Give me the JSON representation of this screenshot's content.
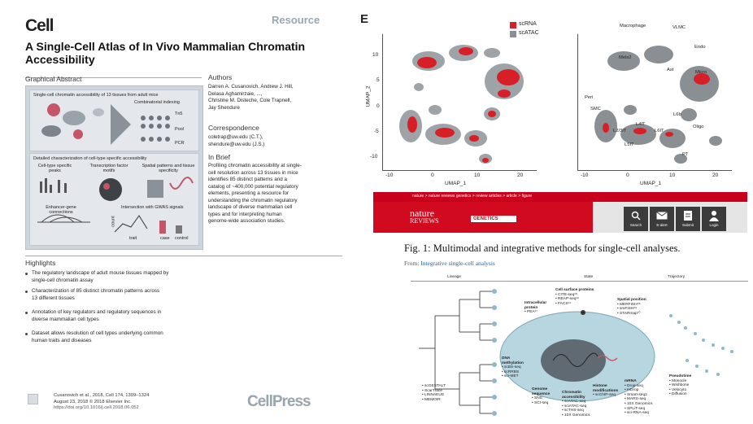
{
  "cell_article": {
    "logo": "Cell",
    "type_label": "Resource",
    "title_line1": "A Single-Cell Atlas of In Vivo Mammalian Chromatin",
    "title_line2": "Accessibility",
    "graphical_abstract_heading": "Graphical Abstract",
    "ga_top_title": "Single-cell chromatin accessibility of 13 tissues from adult mice",
    "ga_combinatorial": "Combinatorial indexing",
    "ga_tn5": "Tn5",
    "ga_pool": "Pool",
    "ga_pcr": "PCR",
    "ga_bottom_title": "Detailed characterization of cell-type specific accessibility",
    "ga_celltype": "Cell-type specific peaks",
    "ga_tf": "Transcription factor motifs",
    "ga_spatial": "Spatial patterns and tissue specificity",
    "ga_enhancer": "Enhancer-gene connections",
    "ga_gwas": "Intersection with GWAS signals",
    "ga_count": "count",
    "ga_trait": "trait",
    "ga_case": "case",
    "ga_control": "control",
    "authors_heading": "Authors",
    "authors": [
      "Darren A. Cusanovich, Andrew J. Hill,",
      "Delasa Aghamirzaie, ...,",
      "Christine M. Disteche, Cole Trapnell,",
      "Jay Shendure"
    ],
    "correspondence_heading": "Correspondence",
    "correspondence": [
      "coletrap@uw.edu (C.T.),",
      "shendure@uw.edu (J.S.)"
    ],
    "in_brief_heading": "In Brief",
    "in_brief": [
      "Profiling chromatin accessibility at single-",
      "cell resolution across 13 tissues in mice",
      "identifies 85 distinct patterns and a",
      "catalog of ~400,000 potential regulatory",
      "elements, presenting a resource for",
      "understanding the chromatin regulatory",
      "landscape of diverse mammalian cell",
      "types and for interpreting human",
      "genome-wide association studies."
    ],
    "highlights_heading": "Highlights",
    "highlights": [
      [
        "The regulatory landscape of adult mouse tissues mapped by",
        "single-cell chromatin assay"
      ],
      [
        "Characterization of 85 distinct chromatin patterns across",
        "13 different tissues"
      ],
      [
        "Annotation of key regulators and regulatory sequences in",
        "diverse mammalian cell types"
      ],
      [
        "Dataset allows resolution of cell types underlying common",
        "human traits and diseases"
      ]
    ],
    "footer": [
      "Cusanovich et al., 2018, Cell 174, 1309–1324",
      "August 23, 2018 © 2018 Elsevier Inc.",
      "https://doi.org/10.1016/j.cell.2018.06.052"
    ],
    "publisher_logo": "CellPress"
  },
  "umap_figure": {
    "panel_letter": "E",
    "legend": [
      "scRNA",
      "scATAC"
    ],
    "colors": {
      "scrna": "#d61f26",
      "scatac": "#8a8f94",
      "scatac_light": "#c2c6ca"
    },
    "x_ticks": [
      "-10",
      "0",
      "10",
      "20"
    ],
    "y_ticks": [
      "10",
      "5",
      "0",
      "-5",
      "-10"
    ],
    "x_label": "UMAP_1",
    "y_label": "UMAP_2",
    "cluster_labels": [
      "Macrophage",
      "VLMC",
      "Endo",
      "Micro",
      "Mels2",
      "Ast",
      "Peri",
      "SMC",
      "L2/3IT",
      "L4IT",
      "L5IT",
      "L6IT",
      "L6b",
      "PT",
      "Oligo"
    ]
  },
  "nature_page": {
    "breadcrumb": "nature > nature reviews genetics > review articles > article > figure",
    "brand_line1": "nature",
    "brand_line2": "REVIEWS",
    "brand_section": "GENETICS",
    "icons": [
      {
        "icon": "search-icon",
        "label": "Search"
      },
      {
        "icon": "mail-icon",
        "label": "E-alert"
      },
      {
        "icon": "submit-icon",
        "label": "Submit"
      },
      {
        "icon": "login-icon",
        "label": "Login"
      }
    ],
    "figure_caption": "Fig. 1: Multimodal and integrative methods for single-cell analyses.",
    "from_prefix": "From:",
    "from_link": "Integrative single-cell analysis",
    "diagram": {
      "col_lineage": "Lineage",
      "col_state": "State",
      "col_trajectory": "Trajectory",
      "surface": [
        "Cell surface proteins",
        "• CITE-seq¹⁵",
        "• REAP-seq¹⁶",
        "• FACS¹⁴"
      ],
      "intracellular": [
        "Intracellular",
        "protein",
        "• PEA¹⁷"
      ],
      "spatial": [
        "Spatial position",
        "• MERFISH⁶⁸",
        "• smFISH⁶⁹",
        "• STARmap⁷⁰"
      ],
      "dna_meth": [
        "DNA",
        "methylation",
        "• scBS-seq",
        "• scRRBS",
        "• sci-MET"
      ],
      "lineage_methods": [
        "• scGESTALT",
        "• ScarTrace",
        "• LINNAEUS",
        "• MEMOIR"
      ],
      "genome": [
        "Genome",
        "sequence",
        "• SNS",
        "• SCI-seq"
      ],
      "chromatin": [
        "Chromatin",
        "accessibility",
        "• scATAC-seq",
        "• sciATAC-seq",
        "• scTHS-seq",
        "• 10X Genomics"
      ],
      "histone": [
        "Histone",
        "modifications",
        "• scChIP-seq"
      ],
      "mrna": [
        "mRNA",
        "• Drop-seq",
        "• InDrop",
        "• Smart-seq2",
        "• MARS-seq",
        "• 10X Genomics",
        "• SPLiT-seq",
        "• sci-RNA-seq"
      ],
      "pseudotime": [
        "Pseudotime",
        "• Monocle",
        "• Wishbone",
        "• Velocyto",
        "• Diffusion"
      ]
    }
  }
}
